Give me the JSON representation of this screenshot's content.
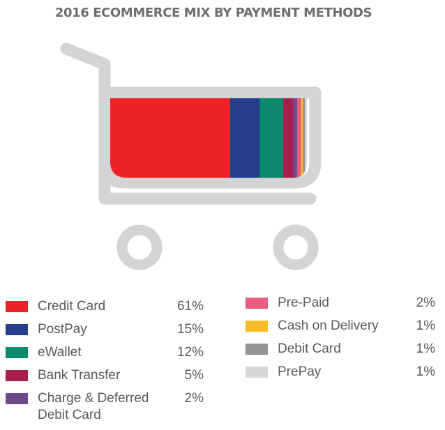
{
  "chart_data": {
    "type": "bar",
    "subtype": "stacked-100",
    "title": "2016 ECOMMERCE MIX BY PAYMENT METHODS",
    "unit": "%",
    "categories": [
      "Credit Card",
      "PostPay",
      "eWallet",
      "Bank Transfer",
      "Charge & Deferred Debit Card",
      "Pre-Paid",
      "Cash on Delivery",
      "Debit Card",
      "PrePay"
    ],
    "labels": [
      "Credit Card",
      "PostPay",
      "eWallet",
      "Bank Transfer",
      "Charge & Deferred\nDebit Card",
      "Pre-Paid",
      "Cash on Delivery",
      "Debit Card",
      "PrePay"
    ],
    "values": [
      61,
      15,
      12,
      5,
      2,
      2,
      1,
      1,
      1
    ],
    "value_labels": [
      "61%",
      "15%",
      "12%",
      "5%",
      "2%",
      "2%",
      "1%",
      "1%",
      "1%"
    ],
    "colors": [
      "#ee2329",
      "#243e8c",
      "#0b8a6e",
      "#a91d4f",
      "#6c4b8d",
      "#ea5c7e",
      "#fbbb26",
      "#939393",
      "#d6d6d6"
    ],
    "legend_placement": "bottom"
  },
  "cart": {
    "frame_color": "#d4d4d4"
  }
}
